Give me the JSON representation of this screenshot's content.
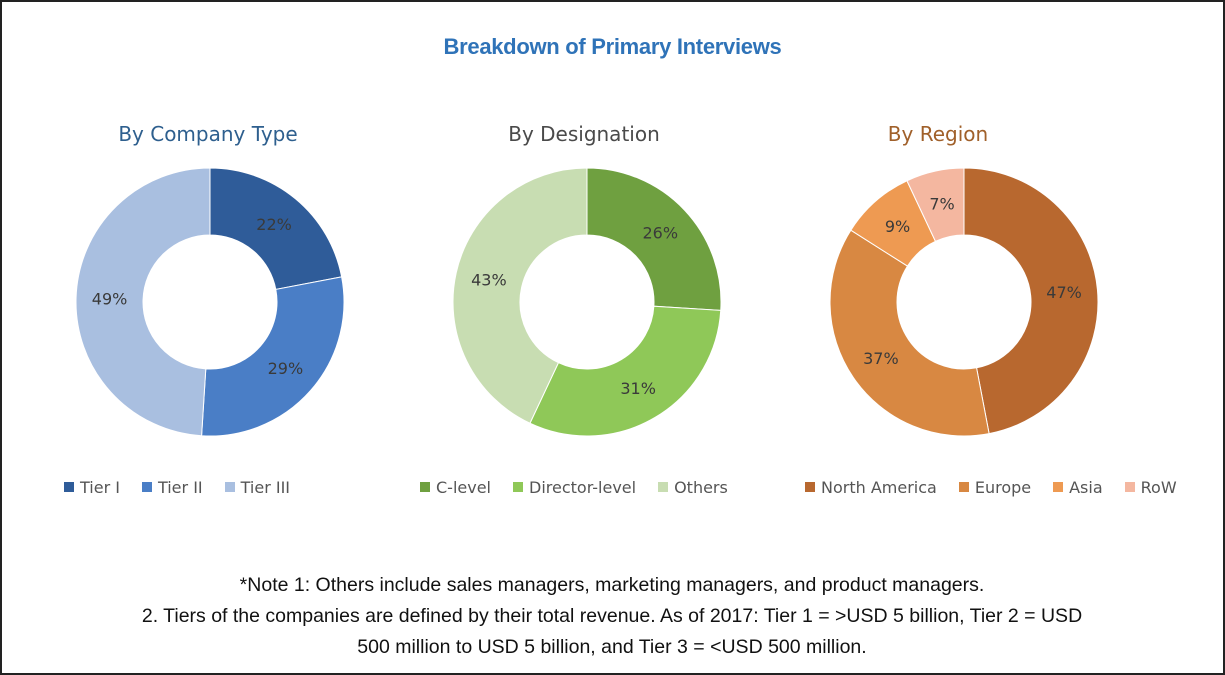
{
  "title": "Breakdown of Primary Interviews",
  "chart_data": [
    {
      "type": "pie",
      "title": "By Company Type",
      "title_color": "#2e5f8e",
      "categories": [
        "Tier I",
        "Tier II",
        "Tier III"
      ],
      "values": [
        22,
        29,
        49
      ],
      "labels": [
        "22%",
        "29%",
        "49%"
      ],
      "colors": [
        "#2f5c99",
        "#4a7ec6",
        "#a9bfe0"
      ],
      "legend_position": "bottom"
    },
    {
      "type": "pie",
      "title": "By Designation",
      "title_color": "#4a4a4a",
      "categories": [
        "C-level",
        "Director-level",
        "Others"
      ],
      "values": [
        26,
        31,
        43
      ],
      "labels": [
        "26%",
        "31%",
        "43%"
      ],
      "colors": [
        "#6fa040",
        "#8fc858",
        "#c8ddb2"
      ],
      "legend_position": "bottom"
    },
    {
      "type": "pie",
      "title": "By Region",
      "title_color": "#a0602a",
      "categories": [
        "North America",
        "Europe",
        "Asia",
        "RoW"
      ],
      "values": [
        47,
        37,
        9,
        7
      ],
      "labels": [
        "47%",
        "37%",
        "9%",
        "7%"
      ],
      "colors": [
        "#b8682f",
        "#d88842",
        "#ee9a52",
        "#f4b7a0"
      ],
      "legend_position": "bottom"
    }
  ],
  "notes": {
    "line1": "*Note 1: Others include sales managers, marketing managers, and product managers.",
    "line2": "2. Tiers of the companies are defined by their total revenue. As of 2017: Tier 1 = >USD 5 billion, Tier 2 = USD",
    "line3": "500 million to USD 5 billion, and Tier 3 = <USD 500 million."
  }
}
